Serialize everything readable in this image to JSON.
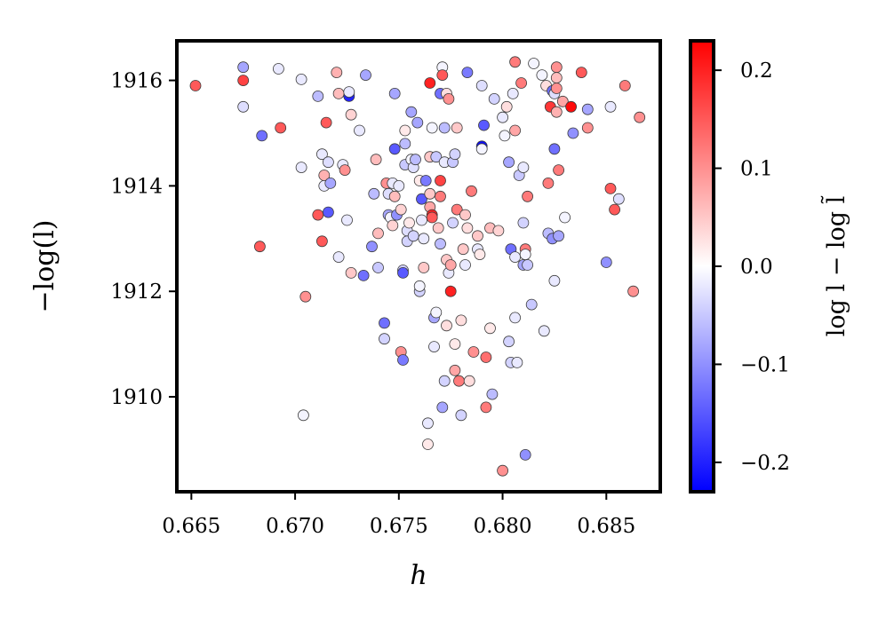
{
  "chart_data": {
    "type": "scatter",
    "title": "",
    "xlabel": "h",
    "ylabel": "−log(l)",
    "xlim": [
      0.6643,
      0.6876
    ],
    "ylim": [
      1908.2,
      1916.75
    ],
    "x_ticks": [
      "0.665",
      "0.670",
      "0.675",
      "0.680",
      "0.685"
    ],
    "x_tick_values": [
      0.665,
      0.67,
      0.675,
      0.68,
      0.685
    ],
    "y_ticks": [
      "1910",
      "1912",
      "1914",
      "1916"
    ],
    "y_tick_values": [
      1910,
      1912,
      1914,
      1916
    ],
    "grid": false,
    "colorbar": {
      "label": "log l − log l̃",
      "range": [
        -0.23,
        0.23
      ],
      "ticks": [
        "−0.2",
        "−0.1",
        "0.0",
        "0.1",
        "0.2"
      ],
      "tick_values": [
        -0.2,
        -0.1,
        0.0,
        0.1,
        0.2
      ],
      "colormap": "bwr",
      "low_color": "#0000ff",
      "mid_color": "#ffffff",
      "high_color": "#ff0000"
    },
    "marker_edge_color": "#3a3a3a",
    "points": [
      {
        "x": 0.6652,
        "y": 1915.9,
        "c": 0.15
      },
      {
        "x": 0.6675,
        "y": 1916.25,
        "c": -0.08
      },
      {
        "x": 0.6675,
        "y": 1916.0,
        "c": 0.17
      },
      {
        "x": 0.6675,
        "y": 1915.5,
        "c": -0.03
      },
      {
        "x": 0.6684,
        "y": 1914.95,
        "c": -0.13
      },
      {
        "x": 0.6683,
        "y": 1912.85,
        "c": 0.15
      },
      {
        "x": 0.6692,
        "y": 1916.22,
        "c": -0.02
      },
      {
        "x": 0.6693,
        "y": 1915.1,
        "c": 0.15
      },
      {
        "x": 0.6703,
        "y": 1916.02,
        "c": -0.02
      },
      {
        "x": 0.6703,
        "y": 1914.35,
        "c": -0.02
      },
      {
        "x": 0.6705,
        "y": 1911.9,
        "c": 0.1
      },
      {
        "x": 0.6704,
        "y": 1909.65,
        "c": -0.01
      },
      {
        "x": 0.6711,
        "y": 1915.7,
        "c": -0.06
      },
      {
        "x": 0.6711,
        "y": 1913.45,
        "c": 0.15
      },
      {
        "x": 0.6713,
        "y": 1914.6,
        "c": -0.02
      },
      {
        "x": 0.6713,
        "y": 1912.95,
        "c": 0.15
      },
      {
        "x": 0.6714,
        "y": 1914.2,
        "c": 0.07
      },
      {
        "x": 0.6714,
        "y": 1914.0,
        "c": -0.02
      },
      {
        "x": 0.6715,
        "y": 1915.2,
        "c": 0.15
      },
      {
        "x": 0.6716,
        "y": 1913.5,
        "c": -0.15
      },
      {
        "x": 0.6716,
        "y": 1914.45,
        "c": -0.03
      },
      {
        "x": 0.6717,
        "y": 1914.05,
        "c": -0.08
      },
      {
        "x": 0.672,
        "y": 1916.15,
        "c": 0.07
      },
      {
        "x": 0.6721,
        "y": 1915.75,
        "c": 0.06
      },
      {
        "x": 0.6721,
        "y": 1912.65,
        "c": -0.02
      },
      {
        "x": 0.6723,
        "y": 1914.4,
        "c": -0.02
      },
      {
        "x": 0.6724,
        "y": 1914.3,
        "c": 0.1
      },
      {
        "x": 0.6725,
        "y": 1913.35,
        "c": -0.02
      },
      {
        "x": 0.6726,
        "y": 1915.7,
        "c": -0.2
      },
      {
        "x": 0.6726,
        "y": 1915.78,
        "c": -0.02
      },
      {
        "x": 0.6727,
        "y": 1915.35,
        "c": 0.04
      },
      {
        "x": 0.6727,
        "y": 1912.35,
        "c": 0.05
      },
      {
        "x": 0.6731,
        "y": 1915.05,
        "c": -0.02
      },
      {
        "x": 0.6733,
        "y": 1912.3,
        "c": -0.13
      },
      {
        "x": 0.6734,
        "y": 1916.1,
        "c": -0.08
      },
      {
        "x": 0.6737,
        "y": 1912.85,
        "c": -0.1
      },
      {
        "x": 0.6738,
        "y": 1913.85,
        "c": -0.06
      },
      {
        "x": 0.6739,
        "y": 1914.5,
        "c": 0.06
      },
      {
        "x": 0.674,
        "y": 1912.45,
        "c": -0.05
      },
      {
        "x": 0.674,
        "y": 1913.1,
        "c": 0.06
      },
      {
        "x": 0.6743,
        "y": 1911.4,
        "c": -0.13
      },
      {
        "x": 0.6743,
        "y": 1911.1,
        "c": -0.04
      },
      {
        "x": 0.6744,
        "y": 1914.05,
        "c": 0.1
      },
      {
        "x": 0.6745,
        "y": 1913.85,
        "c": -0.03
      },
      {
        "x": 0.6745,
        "y": 1913.45,
        "c": -0.08
      },
      {
        "x": 0.6746,
        "y": 1913.4,
        "c": -0.01
      },
      {
        "x": 0.6747,
        "y": 1913.25,
        "c": 0.04
      },
      {
        "x": 0.6747,
        "y": 1914.05,
        "c": -0.02
      },
      {
        "x": 0.6748,
        "y": 1915.75,
        "c": -0.08
      },
      {
        "x": 0.6748,
        "y": 1914.7,
        "c": -0.15
      },
      {
        "x": 0.6748,
        "y": 1913.8,
        "c": 0.06
      },
      {
        "x": 0.6749,
        "y": 1913.45,
        "c": -0.1
      },
      {
        "x": 0.675,
        "y": 1914.0,
        "c": -0.02
      },
      {
        "x": 0.6751,
        "y": 1910.85,
        "c": 0.1
      },
      {
        "x": 0.6751,
        "y": 1913.55,
        "c": 0.04
      },
      {
        "x": 0.6752,
        "y": 1910.7,
        "c": -0.12
      },
      {
        "x": 0.6752,
        "y": 1912.4,
        "c": -0.04
      },
      {
        "x": 0.6752,
        "y": 1912.35,
        "c": -0.15
      },
      {
        "x": 0.6753,
        "y": 1915.05,
        "c": 0.02
      },
      {
        "x": 0.6753,
        "y": 1914.8,
        "c": -0.06
      },
      {
        "x": 0.6753,
        "y": 1914.4,
        "c": -0.05
      },
      {
        "x": 0.6754,
        "y": 1913.15,
        "c": -0.03
      },
      {
        "x": 0.6754,
        "y": 1912.95,
        "c": -0.04
      },
      {
        "x": 0.6755,
        "y": 1913.3,
        "c": 0.02
      },
      {
        "x": 0.6756,
        "y": 1915.4,
        "c": -0.08
      },
      {
        "x": 0.6756,
        "y": 1914.5,
        "c": -0.01
      },
      {
        "x": 0.6757,
        "y": 1914.35,
        "c": -0.03
      },
      {
        "x": 0.6757,
        "y": 1913.05,
        "c": -0.04
      },
      {
        "x": 0.6758,
        "y": 1914.5,
        "c": -0.06
      },
      {
        "x": 0.6759,
        "y": 1915.2,
        "c": -0.08
      },
      {
        "x": 0.676,
        "y": 1914.1,
        "c": 0.02
      },
      {
        "x": 0.676,
        "y": 1912.0,
        "c": -0.04
      },
      {
        "x": 0.676,
        "y": 1912.1,
        "c": -0.01
      },
      {
        "x": 0.6761,
        "y": 1913.75,
        "c": -0.15
      },
      {
        "x": 0.6761,
        "y": 1913.35,
        "c": -0.02
      },
      {
        "x": 0.6762,
        "y": 1912.45,
        "c": 0.05
      },
      {
        "x": 0.6762,
        "y": 1913.0,
        "c": -0.02
      },
      {
        "x": 0.6763,
        "y": 1914.1,
        "c": -0.12
      },
      {
        "x": 0.6764,
        "y": 1909.1,
        "c": 0.02
      },
      {
        "x": 0.6764,
        "y": 1909.5,
        "c": -0.02
      },
      {
        "x": 0.6765,
        "y": 1915.95,
        "c": 0.2
      },
      {
        "x": 0.6765,
        "y": 1913.85,
        "c": 0.05
      },
      {
        "x": 0.6765,
        "y": 1913.6,
        "c": 0.08
      },
      {
        "x": 0.6765,
        "y": 1914.55,
        "c": 0.05
      },
      {
        "x": 0.6766,
        "y": 1915.1,
        "c": -0.01
      },
      {
        "x": 0.6766,
        "y": 1913.45,
        "c": 0.2
      },
      {
        "x": 0.6766,
        "y": 1913.4,
        "c": 0.15
      },
      {
        "x": 0.6767,
        "y": 1911.5,
        "c": -0.08
      },
      {
        "x": 0.6767,
        "y": 1910.95,
        "c": -0.02
      },
      {
        "x": 0.6768,
        "y": 1914.55,
        "c": -0.05
      },
      {
        "x": 0.6768,
        "y": 1911.6,
        "c": -0.01
      },
      {
        "x": 0.6769,
        "y": 1913.2,
        "c": 0.05
      },
      {
        "x": 0.677,
        "y": 1915.75,
        "c": -0.13
      },
      {
        "x": 0.677,
        "y": 1914.1,
        "c": 0.17
      },
      {
        "x": 0.677,
        "y": 1913.8,
        "c": 0.12
      },
      {
        "x": 0.677,
        "y": 1912.9,
        "c": -0.06
      },
      {
        "x": 0.6771,
        "y": 1916.25,
        "c": -0.01
      },
      {
        "x": 0.6771,
        "y": 1916.1,
        "c": 0.15
      },
      {
        "x": 0.6771,
        "y": 1909.8,
        "c": -0.08
      },
      {
        "x": 0.6772,
        "y": 1915.1,
        "c": -0.06
      },
      {
        "x": 0.6772,
        "y": 1914.45,
        "c": -0.02
      },
      {
        "x": 0.6772,
        "y": 1910.3,
        "c": -0.04
      },
      {
        "x": 0.6773,
        "y": 1915.75,
        "c": 0.03
      },
      {
        "x": 0.6773,
        "y": 1911.35,
        "c": 0.03
      },
      {
        "x": 0.6773,
        "y": 1912.6,
        "c": 0.05
      },
      {
        "x": 0.6774,
        "y": 1915.65,
        "c": 0.1
      },
      {
        "x": 0.6774,
        "y": 1912.35,
        "c": -0.02
      },
      {
        "x": 0.6775,
        "y": 1912.5,
        "c": 0.08
      },
      {
        "x": 0.6775,
        "y": 1912.0,
        "c": 0.2
      },
      {
        "x": 0.6776,
        "y": 1914.45,
        "c": -0.05
      },
      {
        "x": 0.6776,
        "y": 1913.3,
        "c": -0.04
      },
      {
        "x": 0.6777,
        "y": 1914.6,
        "c": -0.04
      },
      {
        "x": 0.6777,
        "y": 1911.0,
        "c": 0.02
      },
      {
        "x": 0.6777,
        "y": 1910.5,
        "c": 0.08
      },
      {
        "x": 0.6778,
        "y": 1915.1,
        "c": 0.05
      },
      {
        "x": 0.6778,
        "y": 1913.55,
        "c": 0.12
      },
      {
        "x": 0.6779,
        "y": 1910.3,
        "c": 0.12
      },
      {
        "x": 0.678,
        "y": 1909.65,
        "c": -0.04
      },
      {
        "x": 0.678,
        "y": 1911.45,
        "c": 0.03
      },
      {
        "x": 0.6781,
        "y": 1912.8,
        "c": 0.05
      },
      {
        "x": 0.6782,
        "y": 1912.5,
        "c": -0.02
      },
      {
        "x": 0.6782,
        "y": 1913.45,
        "c": 0.05
      },
      {
        "x": 0.6783,
        "y": 1916.15,
        "c": -0.12
      },
      {
        "x": 0.6783,
        "y": 1913.2,
        "c": 0.03
      },
      {
        "x": 0.6784,
        "y": 1910.3,
        "c": 0.03
      },
      {
        "x": 0.6785,
        "y": 1913.9,
        "c": 0.12
      },
      {
        "x": 0.6786,
        "y": 1910.85,
        "c": 0.1
      },
      {
        "x": 0.6788,
        "y": 1913.05,
        "c": 0.05
      },
      {
        "x": 0.6788,
        "y": 1912.8,
        "c": -0.02
      },
      {
        "x": 0.6789,
        "y": 1912.7,
        "c": 0.02
      },
      {
        "x": 0.679,
        "y": 1914.75,
        "c": -0.22
      },
      {
        "x": 0.679,
        "y": 1915.9,
        "c": -0.03
      },
      {
        "x": 0.679,
        "y": 1914.7,
        "c": -0.01
      },
      {
        "x": 0.6791,
        "y": 1915.15,
        "c": -0.15
      },
      {
        "x": 0.6792,
        "y": 1909.8,
        "c": 0.12
      },
      {
        "x": 0.6792,
        "y": 1910.75,
        "c": 0.13
      },
      {
        "x": 0.6794,
        "y": 1913.2,
        "c": 0.06
      },
      {
        "x": 0.6794,
        "y": 1911.3,
        "c": 0.02
      },
      {
        "x": 0.6795,
        "y": 1910.05,
        "c": -0.06
      },
      {
        "x": 0.6796,
        "y": 1915.65,
        "c": -0.04
      },
      {
        "x": 0.6798,
        "y": 1913.15,
        "c": 0.04
      },
      {
        "x": 0.68,
        "y": 1915.3,
        "c": -0.02
      },
      {
        "x": 0.68,
        "y": 1908.6,
        "c": 0.1
      },
      {
        "x": 0.6801,
        "y": 1914.95,
        "c": -0.01
      },
      {
        "x": 0.6802,
        "y": 1915.5,
        "c": 0.03
      },
      {
        "x": 0.6803,
        "y": 1914.45,
        "c": -0.08
      },
      {
        "x": 0.6803,
        "y": 1911.05,
        "c": -0.04
      },
      {
        "x": 0.6804,
        "y": 1912.8,
        "c": -0.13
      },
      {
        "x": 0.6804,
        "y": 1910.65,
        "c": -0.04
      },
      {
        "x": 0.6805,
        "y": 1915.75,
        "c": -0.02
      },
      {
        "x": 0.6806,
        "y": 1916.35,
        "c": 0.12
      },
      {
        "x": 0.6806,
        "y": 1915.05,
        "c": 0.08
      },
      {
        "x": 0.6806,
        "y": 1912.65,
        "c": -0.02
      },
      {
        "x": 0.6806,
        "y": 1911.5,
        "c": -0.02
      },
      {
        "x": 0.6807,
        "y": 1910.65,
        "c": -0.02
      },
      {
        "x": 0.6808,
        "y": 1914.2,
        "c": -0.05
      },
      {
        "x": 0.6809,
        "y": 1915.95,
        "c": 0.12
      },
      {
        "x": 0.681,
        "y": 1914.35,
        "c": -0.02
      },
      {
        "x": 0.681,
        "y": 1912.5,
        "c": -0.08
      },
      {
        "x": 0.681,
        "y": 1913.3,
        "c": -0.04
      },
      {
        "x": 0.6811,
        "y": 1912.8,
        "c": 0.12
      },
      {
        "x": 0.6811,
        "y": 1912.7,
        "c": -0.01
      },
      {
        "x": 0.6811,
        "y": 1908.9,
        "c": -0.1
      },
      {
        "x": 0.6812,
        "y": 1913.8,
        "c": 0.12
      },
      {
        "x": 0.6812,
        "y": 1912.5,
        "c": -0.05
      },
      {
        "x": 0.6814,
        "y": 1911.75,
        "c": -0.05
      },
      {
        "x": 0.6815,
        "y": 1916.32,
        "c": -0.01
      },
      {
        "x": 0.6819,
        "y": 1916.1,
        "c": -0.01
      },
      {
        "x": 0.682,
        "y": 1911.25,
        "c": -0.02
      },
      {
        "x": 0.6821,
        "y": 1915.9,
        "c": 0.03
      },
      {
        "x": 0.6822,
        "y": 1913.1,
        "c": -0.06
      },
      {
        "x": 0.6822,
        "y": 1914.05,
        "c": 0.12
      },
      {
        "x": 0.6823,
        "y": 1915.5,
        "c": 0.18
      },
      {
        "x": 0.6824,
        "y": 1915.8,
        "c": -0.13
      },
      {
        "x": 0.6824,
        "y": 1913.0,
        "c": -0.1
      },
      {
        "x": 0.6825,
        "y": 1915.75,
        "c": -0.03
      },
      {
        "x": 0.6825,
        "y": 1914.7,
        "c": -0.13
      },
      {
        "x": 0.6825,
        "y": 1912.2,
        "c": -0.02
      },
      {
        "x": 0.6826,
        "y": 1916.25,
        "c": 0.1
      },
      {
        "x": 0.6826,
        "y": 1916.05,
        "c": 0.06
      },
      {
        "x": 0.6826,
        "y": 1915.85,
        "c": 0.1
      },
      {
        "x": 0.6826,
        "y": 1915.4,
        "c": 0.07
      },
      {
        "x": 0.6827,
        "y": 1914.3,
        "c": 0.12
      },
      {
        "x": 0.6827,
        "y": 1913.05,
        "c": -0.08
      },
      {
        "x": 0.6829,
        "y": 1915.6,
        "c": 0.08
      },
      {
        "x": 0.683,
        "y": 1913.4,
        "c": -0.01
      },
      {
        "x": 0.6833,
        "y": 1915.5,
        "c": 0.22
      },
      {
        "x": 0.6834,
        "y": 1915.0,
        "c": -0.1
      },
      {
        "x": 0.6838,
        "y": 1916.15,
        "c": 0.15
      },
      {
        "x": 0.6841,
        "y": 1915.45,
        "c": -0.08
      },
      {
        "x": 0.6841,
        "y": 1915.1,
        "c": 0.1
      },
      {
        "x": 0.685,
        "y": 1912.55,
        "c": -0.1
      },
      {
        "x": 0.6852,
        "y": 1913.95,
        "c": 0.15
      },
      {
        "x": 0.6852,
        "y": 1915.5,
        "c": -0.02
      },
      {
        "x": 0.6854,
        "y": 1913.55,
        "c": 0.15
      },
      {
        "x": 0.6856,
        "y": 1913.75,
        "c": -0.03
      },
      {
        "x": 0.6859,
        "y": 1915.9,
        "c": 0.12
      },
      {
        "x": 0.6863,
        "y": 1912.0,
        "c": 0.1
      },
      {
        "x": 0.6866,
        "y": 1915.3,
        "c": 0.1
      }
    ]
  }
}
